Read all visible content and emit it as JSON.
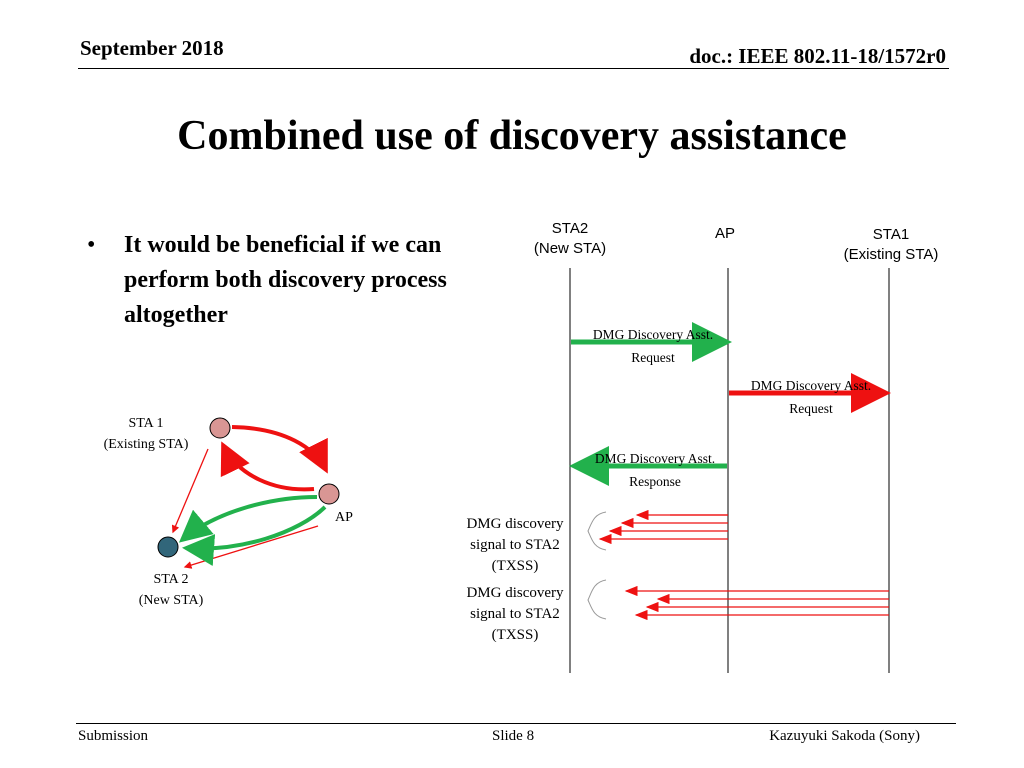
{
  "header": {
    "date": "September 2018",
    "doc": "doc.: IEEE 802.11-18/1572r0"
  },
  "title": "Combined use of discovery assistance",
  "bullet": {
    "marker": "•",
    "text": "It would be beneficial if we can perform both discovery process altogether"
  },
  "left_diagram": {
    "sta1_line1": "STA 1",
    "sta1_line2": "(Existing STA)",
    "ap": "AP",
    "sta2_line1": "STA 2",
    "sta2_line2": "(New STA)"
  },
  "sequence": {
    "col_sta2_line1": "STA2",
    "col_sta2_line2": "(New STA)",
    "col_ap": "AP",
    "col_sta1_line1": "STA1",
    "col_sta1_line2": "(Existing STA)",
    "msg1_line1": "DMG Discovery Asst.",
    "msg1_line2": "Request",
    "msg2_line1": "DMG Discovery Asst.",
    "msg2_line2": "Request",
    "msg3_line1": "DMG Discovery Asst.",
    "msg3_line2": "Response",
    "sig1_line1": "DMG discovery",
    "sig1_line2": "signal to STA2",
    "sig1_line3": "(TXSS)",
    "sig2_line1": "DMG discovery",
    "sig2_line2": "signal to STA2",
    "sig2_line3": "(TXSS)"
  },
  "footer": {
    "left": "Submission",
    "center": "Slide 8",
    "right": "Kazuyuki Sakoda (Sony)"
  },
  "colors": {
    "green": "#22b14c",
    "red": "#ee1111",
    "node_pink": "#d99694",
    "node_teal": "#31667a"
  }
}
